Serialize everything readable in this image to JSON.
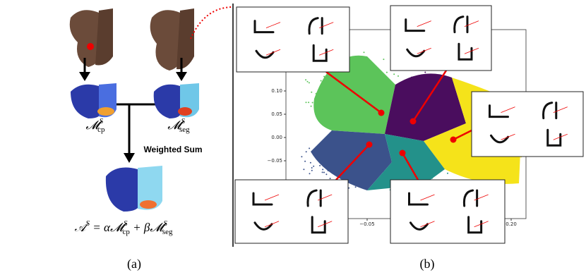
{
  "panel_a": {
    "cp_label": [
      "𝓜",
      "S",
      "cp"
    ],
    "seg_label": [
      "𝓜",
      "S",
      "seg"
    ],
    "weighted_sum": "Weighted Sum",
    "formula": [
      "𝒜",
      "S",
      " = α𝓜",
      "S",
      "cp",
      " + β𝓜",
      "S",
      "seg"
    ],
    "caption": "(a)"
  },
  "panel_b": {
    "yticks": [
      "0.10",
      "0.05",
      "0.00",
      "−0.05"
    ],
    "xticks": [
      "−0.05",
      "0.20"
    ],
    "caption": "(b)"
  }
}
